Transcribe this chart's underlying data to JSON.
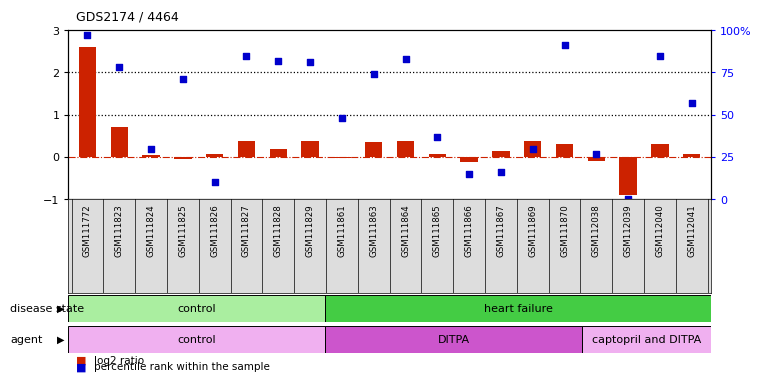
{
  "title": "GDS2174 / 4464",
  "samples": [
    "GSM111772",
    "GSM111823",
    "GSM111824",
    "GSM111825",
    "GSM111826",
    "GSM111827",
    "GSM111828",
    "GSM111829",
    "GSM111861",
    "GSM111863",
    "GSM111864",
    "GSM111865",
    "GSM111866",
    "GSM111867",
    "GSM111869",
    "GSM111870",
    "GSM112038",
    "GSM112039",
    "GSM112040",
    "GSM112041"
  ],
  "log2_ratio": [
    2.6,
    0.7,
    0.05,
    -0.05,
    0.08,
    0.38,
    0.2,
    0.38,
    -0.02,
    0.35,
    0.38,
    0.08,
    -0.12,
    0.15,
    0.38,
    0.3,
    -0.1,
    -0.9,
    0.3,
    0.07
  ],
  "percentile_rank_pct": [
    97,
    78,
    30,
    71,
    10,
    85,
    82,
    81,
    48,
    74,
    83,
    37,
    15,
    16,
    30,
    91,
    27,
    0,
    85,
    57
  ],
  "bar_color": "#cc2200",
  "dot_color": "#0000cc",
  "ylim_left": [
    -1,
    3
  ],
  "ylim_right": [
    0,
    100
  ],
  "yticks_left": [
    -1,
    0,
    1,
    2,
    3
  ],
  "yticks_right": [
    0,
    25,
    50,
    75,
    100
  ],
  "disease_state": [
    {
      "label": "control",
      "start": 0,
      "end": 8,
      "color": "#aaeea0"
    },
    {
      "label": "heart failure",
      "start": 8,
      "end": 20,
      "color": "#44cc44"
    }
  ],
  "agent": [
    {
      "label": "control",
      "start": 0,
      "end": 8,
      "color": "#f0b0f0"
    },
    {
      "label": "DITPA",
      "start": 8,
      "end": 16,
      "color": "#cc55cc"
    },
    {
      "label": "captopril and DITPA",
      "start": 16,
      "end": 20,
      "color": "#f0b0f0"
    }
  ],
  "legend_items": [
    {
      "color": "#cc2200",
      "label": "log2 ratio"
    },
    {
      "color": "#0000cc",
      "label": "percentile rank within the sample"
    }
  ]
}
